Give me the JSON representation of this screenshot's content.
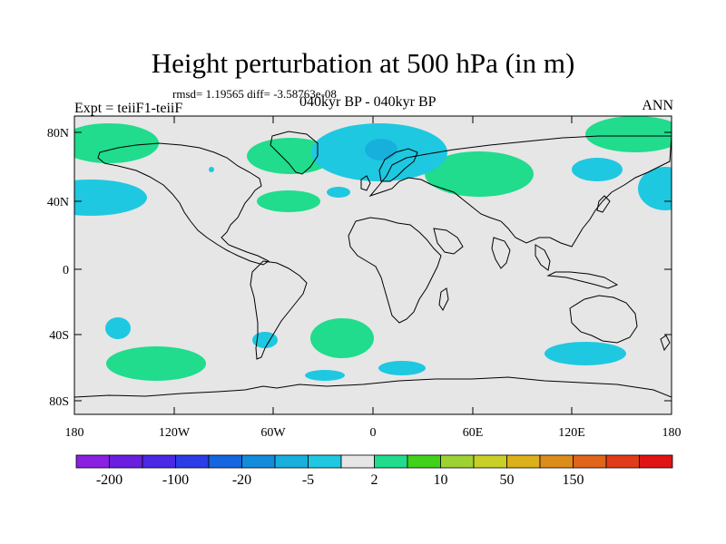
{
  "title": "Height perturbation at 500 hPa (in m)",
  "stats": "rmsd= 1.19565 diff= -3.58763e-08",
  "experiment": "Expt = teiiF1-teiiF",
  "period": "040kyr BP - 040kyr BP",
  "season": "ANN",
  "map": {
    "background_color": "#e6e6e6",
    "lat_ticks": [
      "80N",
      "40N",
      "0",
      "40S",
      "80S"
    ],
    "lon_ticks": [
      "180",
      "120W",
      "60W",
      "0",
      "60E",
      "120E",
      "180"
    ]
  },
  "colorbar": {
    "colors": [
      "#8a20e0",
      "#6a1ee0",
      "#4a28e6",
      "#2a3de6",
      "#1666e0",
      "#138cdc",
      "#17b0dc",
      "#1ec8e0",
      "#e6e6e6",
      "#20dc8c",
      "#40d21a",
      "#9ed232",
      "#c8d028",
      "#dcb01a",
      "#dc8c1a",
      "#e0641a",
      "#e03c1a",
      "#e01414"
    ],
    "labels": [
      "-200",
      "-100",
      "-20",
      "-5",
      "2",
      "10",
      "50",
      "150"
    ]
  },
  "colors": {
    "positive": "#20dc8c",
    "negative": "#1ec8e0",
    "strong_negative": "#17b0dc"
  }
}
